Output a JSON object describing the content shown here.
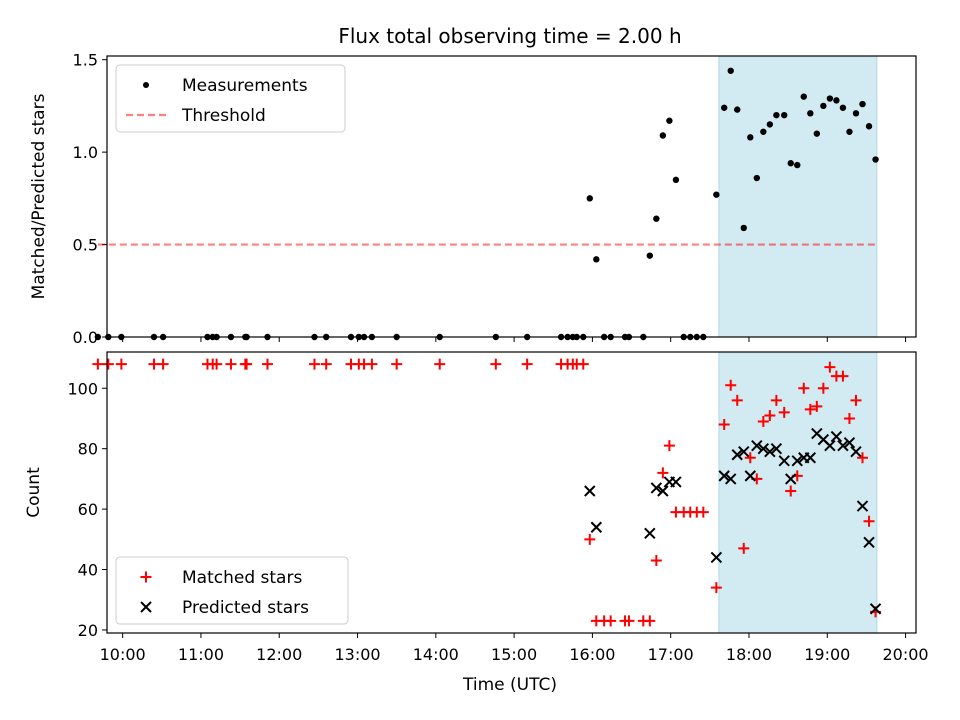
{
  "title": "Flux total observing time = 2.00 h",
  "xlabel": "Time (UTC)",
  "colors": {
    "shade": "#add8e6",
    "threshold": "#ff0000",
    "matched": "#ff0000",
    "predicted": "#000000",
    "measurements": "#000000"
  },
  "chart_data": [
    {
      "type": "scatter",
      "ylabel": "Matched/Predicted stars",
      "xlim": [
        "09:48",
        "20:08"
      ],
      "ylim": [
        0,
        1.52
      ],
      "yticks": [
        0.0,
        0.5,
        1.0,
        1.5
      ],
      "ytick_labels": [
        "0.0",
        "0.5",
        "1.0",
        "1.5"
      ],
      "shaded_span": [
        "17:37",
        "19:38"
      ],
      "legend": {
        "placement": "top-left",
        "entries": [
          "Measurements",
          "Threshold"
        ]
      },
      "threshold": {
        "name": "Threshold",
        "y": 0.5,
        "x_range": [
          "09:41",
          "19:38"
        ]
      },
      "series": [
        {
          "name": "Measurements",
          "points": [
            [
              "09:41",
              0
            ],
            [
              "09:49",
              0
            ],
            [
              "09:59",
              0
            ],
            [
              "10:24",
              0
            ],
            [
              "10:31",
              0
            ],
            [
              "11:05",
              0
            ],
            [
              "11:09",
              0
            ],
            [
              "11:12",
              0
            ],
            [
              "11:23",
              0
            ],
            [
              "11:34",
              0
            ],
            [
              "11:35",
              0
            ],
            [
              "11:51",
              0
            ],
            [
              "12:27",
              0
            ],
            [
              "12:36",
              0
            ],
            [
              "12:55",
              0
            ],
            [
              "13:01",
              0
            ],
            [
              "13:05",
              0
            ],
            [
              "13:11",
              0
            ],
            [
              "13:30",
              0
            ],
            [
              "14:03",
              0
            ],
            [
              "14:46",
              0
            ],
            [
              "15:10",
              0
            ],
            [
              "15:36",
              0
            ],
            [
              "15:41",
              0
            ],
            [
              "15:45",
              0
            ],
            [
              "15:48",
              0
            ],
            [
              "15:53",
              0
            ],
            [
              "15:58",
              0.75
            ],
            [
              "16:03",
              0.42
            ],
            [
              "16:09",
              0
            ],
            [
              "16:14",
              0
            ],
            [
              "16:25",
              0
            ],
            [
              "16:28",
              0
            ],
            [
              "16:39",
              0
            ],
            [
              "16:44",
              0.44
            ],
            [
              "16:49",
              0.64
            ],
            [
              "16:54",
              1.09
            ],
            [
              "16:59",
              1.17
            ],
            [
              "17:04",
              0.85
            ],
            [
              "17:10",
              0
            ],
            [
              "17:15",
              0
            ],
            [
              "17:20",
              0
            ],
            [
              "17:25",
              0
            ],
            [
              "17:35",
              0.77
            ],
            [
              "17:41",
              1.24
            ],
            [
              "17:46",
              1.44
            ],
            [
              "17:51",
              1.23
            ],
            [
              "17:56",
              0.59
            ],
            [
              "18:01",
              1.08
            ],
            [
              "18:06",
              0.86
            ],
            [
              "18:11",
              1.11
            ],
            [
              "18:16",
              1.15
            ],
            [
              "18:21",
              1.2
            ],
            [
              "18:27",
              1.2
            ],
            [
              "18:32",
              0.94
            ],
            [
              "18:37",
              0.93
            ],
            [
              "18:42",
              1.3
            ],
            [
              "18:47",
              1.21
            ],
            [
              "18:52",
              1.1
            ],
            [
              "18:57",
              1.25
            ],
            [
              "19:02",
              1.29
            ],
            [
              "19:07",
              1.28
            ],
            [
              "19:12",
              1.24
            ],
            [
              "19:17",
              1.11
            ],
            [
              "19:22",
              1.21
            ],
            [
              "19:27",
              1.26
            ],
            [
              "19:32",
              1.14
            ],
            [
              "19:37",
              0.96
            ]
          ]
        }
      ]
    },
    {
      "type": "scatter",
      "ylabel": "Count",
      "xlim": [
        "09:48",
        "20:08"
      ],
      "ylim": [
        19,
        112
      ],
      "yticks": [
        20,
        40,
        60,
        80,
        100
      ],
      "ytick_labels": [
        "20",
        "40",
        "60",
        "80",
        "100"
      ],
      "xticks": [
        "10:00",
        "11:00",
        "12:00",
        "13:00",
        "14:00",
        "15:00",
        "16:00",
        "17:00",
        "18:00",
        "19:00",
        "20:00"
      ],
      "shaded_span": [
        "17:37",
        "19:38"
      ],
      "legend": {
        "placement": "bottom-left",
        "entries": [
          "Matched stars",
          "Predicted stars"
        ]
      },
      "series": [
        {
          "name": "Matched stars",
          "marker": "+",
          "points": [
            [
              "09:41",
              108
            ],
            [
              "09:49",
              108
            ],
            [
              "09:59",
              108
            ],
            [
              "10:24",
              108
            ],
            [
              "10:31",
              108
            ],
            [
              "11:05",
              108
            ],
            [
              "11:09",
              108
            ],
            [
              "11:12",
              108
            ],
            [
              "11:23",
              108
            ],
            [
              "11:34",
              108
            ],
            [
              "11:35",
              108
            ],
            [
              "11:51",
              108
            ],
            [
              "12:27",
              108
            ],
            [
              "12:36",
              108
            ],
            [
              "12:55",
              108
            ],
            [
              "13:01",
              108
            ],
            [
              "13:05",
              108
            ],
            [
              "13:11",
              108
            ],
            [
              "13:30",
              108
            ],
            [
              "14:03",
              108
            ],
            [
              "14:46",
              108
            ],
            [
              "15:10",
              108
            ],
            [
              "15:36",
              108
            ],
            [
              "15:41",
              108
            ],
            [
              "15:45",
              108
            ],
            [
              "15:48",
              108
            ],
            [
              "15:53",
              108
            ],
            [
              "15:58",
              50
            ],
            [
              "16:03",
              23
            ],
            [
              "16:09",
              23
            ],
            [
              "16:14",
              23
            ],
            [
              "16:25",
              23
            ],
            [
              "16:28",
              23
            ],
            [
              "16:39",
              23
            ],
            [
              "16:44",
              23
            ],
            [
              "16:49",
              43
            ],
            [
              "16:54",
              72
            ],
            [
              "16:59",
              81
            ],
            [
              "17:04",
              59
            ],
            [
              "17:10",
              59
            ],
            [
              "17:15",
              59
            ],
            [
              "17:20",
              59
            ],
            [
              "17:25",
              59
            ],
            [
              "17:35",
              34
            ],
            [
              "17:41",
              88
            ],
            [
              "17:46",
              101
            ],
            [
              "17:51",
              96
            ],
            [
              "17:56",
              47
            ],
            [
              "18:01",
              77
            ],
            [
              "18:06",
              70
            ],
            [
              "18:11",
              89
            ],
            [
              "18:16",
              91
            ],
            [
              "18:21",
              96
            ],
            [
              "18:27",
              92
            ],
            [
              "18:32",
              66
            ],
            [
              "18:37",
              71
            ],
            [
              "18:42",
              100
            ],
            [
              "18:47",
              93
            ],
            [
              "18:52",
              94
            ],
            [
              "18:57",
              100
            ],
            [
              "19:02",
              107
            ],
            [
              "19:07",
              104
            ],
            [
              "19:12",
              104
            ],
            [
              "19:17",
              90
            ],
            [
              "19:22",
              96
            ],
            [
              "19:27",
              77
            ],
            [
              "19:32",
              56
            ],
            [
              "19:37",
              26
            ]
          ]
        },
        {
          "name": "Predicted stars",
          "marker": "x",
          "points": [
            [
              "15:58",
              66
            ],
            [
              "16:03",
              54
            ],
            [
              "16:44",
              52
            ],
            [
              "16:49",
              67
            ],
            [
              "16:54",
              66
            ],
            [
              "16:59",
              69
            ],
            [
              "17:04",
              69
            ],
            [
              "17:35",
              44
            ],
            [
              "17:41",
              71
            ],
            [
              "17:46",
              70
            ],
            [
              "17:51",
              78
            ],
            [
              "17:56",
              79
            ],
            [
              "18:01",
              71
            ],
            [
              "18:06",
              81
            ],
            [
              "18:11",
              80
            ],
            [
              "18:16",
              79
            ],
            [
              "18:21",
              80
            ],
            [
              "18:27",
              76
            ],
            [
              "18:32",
              70
            ],
            [
              "18:37",
              76
            ],
            [
              "18:42",
              77
            ],
            [
              "18:47",
              77
            ],
            [
              "18:52",
              85
            ],
            [
              "18:57",
              83
            ],
            [
              "19:02",
              81
            ],
            [
              "19:07",
              84
            ],
            [
              "19:12",
              81
            ],
            [
              "19:17",
              82
            ],
            [
              "19:22",
              79
            ],
            [
              "19:27",
              61
            ],
            [
              "19:32",
              49
            ],
            [
              "19:37",
              27
            ]
          ]
        }
      ]
    }
  ]
}
